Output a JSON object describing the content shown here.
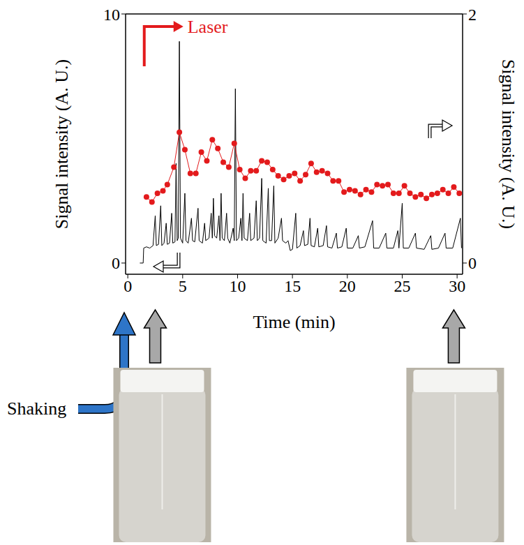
{
  "chart_data": {
    "type": "line",
    "x_label": "Time (min)",
    "y_label": "Signal intensity (A. U.)",
    "y2_label": "Signal intensity (A. U.)",
    "xlim": [
      -0.2,
      30.5
    ],
    "xticks": [
      0,
      5,
      10,
      15,
      20,
      25,
      30
    ],
    "ylim": [
      -0.45,
      10
    ],
    "yticks": [
      0,
      10
    ],
    "y2lim": [
      -0.09,
      2
    ],
    "y2ticks": [
      0,
      2
    ],
    "grid": false,
    "annotations": [
      "Laser",
      "Shaking"
    ],
    "series": [
      {
        "color": "#000000",
        "marker": "none",
        "line_style": "solid",
        "x": [
          1.1,
          1.4,
          1.45,
          1.7,
          2.0,
          2.3,
          2.5,
          2.6,
          2.8,
          3.0,
          3.1,
          3.3,
          3.5,
          3.6,
          3.8,
          4.0,
          4.1,
          4.3,
          4.4,
          4.5,
          4.6,
          4.7,
          4.8,
          5.0,
          5.2,
          5.3,
          5.5,
          5.8,
          5.9,
          6.1,
          6.4,
          6.5,
          6.8,
          7.0,
          7.1,
          7.4,
          7.6,
          7.7,
          7.8,
          7.9,
          8.1,
          8.3,
          8.4,
          8.5,
          8.6,
          8.8,
          9.0,
          9.1,
          9.3,
          9.6,
          9.7,
          9.8,
          9.9,
          10.1,
          10.3,
          10.4,
          10.5,
          10.6,
          10.9,
          11.1,
          11.2,
          11.5,
          11.7,
          11.8,
          12.0,
          12.2,
          12.3,
          12.6,
          12.8,
          12.9,
          13.1,
          13.3,
          13.4,
          13.7,
          14.0,
          14.1,
          14.4,
          14.6,
          14.8,
          15.0,
          15.3,
          15.4,
          15.7,
          16.0,
          16.1,
          16.4,
          16.6,
          16.7,
          17.0,
          17.3,
          17.4,
          17.8,
          18.1,
          18.2,
          18.6,
          19.0,
          19.1,
          19.5,
          19.9,
          20.0,
          20.5,
          21.0,
          21.1,
          21.6,
          22.3,
          22.4,
          22.9,
          23.5,
          23.6,
          24.2,
          24.6,
          24.7,
          25.0,
          25.1,
          25.6,
          26.2,
          26.3,
          27.0,
          27.6,
          27.7,
          28.3,
          28.9,
          29.0,
          29.6,
          30.3,
          30.4
        ],
        "values": [
          0,
          0,
          0.6,
          0.65,
          0.6,
          0.7,
          1.9,
          0.7,
          0.75,
          2.3,
          0.7,
          0.8,
          1.6,
          0.75,
          0.8,
          2.0,
          0.8,
          0.85,
          4.0,
          0.9,
          1.0,
          8.9,
          1.0,
          0.8,
          2.8,
          0.9,
          0.8,
          1.8,
          0.9,
          0.85,
          2.2,
          0.9,
          0.8,
          1.6,
          0.9,
          1.0,
          2.0,
          1.0,
          2.6,
          1.1,
          1.0,
          1.9,
          0.9,
          2.8,
          1.0,
          0.9,
          2.0,
          1.0,
          0.8,
          1.4,
          0.9,
          7.0,
          0.9,
          1.0,
          1.8,
          0.9,
          2.8,
          1.0,
          0.9,
          2.0,
          0.9,
          1.0,
          2.5,
          0.9,
          1.0,
          3.4,
          0.9,
          0.8,
          3.0,
          0.9,
          0.9,
          3.1,
          0.8,
          1.0,
          1.8,
          0.9,
          0.8,
          0.9,
          0.5,
          0.55,
          2.0,
          0.6,
          0.7,
          1.3,
          0.7,
          0.75,
          1.8,
          0.7,
          0.65,
          1.4,
          0.65,
          0.7,
          1.5,
          0.65,
          0.6,
          1.2,
          0.6,
          0.65,
          1.4,
          0.6,
          0.6,
          1.1,
          0.6,
          0.65,
          1.7,
          0.6,
          0.6,
          1.2,
          0.6,
          0.6,
          1.3,
          0.6,
          2.4,
          0.6,
          0.6,
          1.2,
          0.6,
          0.55,
          1.1,
          0.55,
          0.6,
          1.2,
          0.6,
          0.6,
          1.8,
          0.6
        ]
      },
      {
        "color": "#e31a1c",
        "marker": "circle",
        "line_style": "solid",
        "axis": "y2",
        "x": [
          1.7,
          2.2,
          2.7,
          3.2,
          3.6,
          4.2,
          4.7,
          5.2,
          5.7,
          6.2,
          6.7,
          7.2,
          7.7,
          8.2,
          8.7,
          9.2,
          9.7,
          10.2,
          10.7,
          11.2,
          11.7,
          12.2,
          12.7,
          13.2,
          13.7,
          14.2,
          14.7,
          15.2,
          15.7,
          16.2,
          16.7,
          17.2,
          17.7,
          18.2,
          18.7,
          19.2,
          19.7,
          20.2,
          20.7,
          21.2,
          21.7,
          22.2,
          22.7,
          23.2,
          23.7,
          24.2,
          24.7,
          25.2,
          25.7,
          26.2,
          26.7,
          27.2,
          27.7,
          28.2,
          28.7,
          29.2,
          29.7,
          30.2
        ],
        "values": [
          0.53,
          0.49,
          0.56,
          0.58,
          0.63,
          0.77,
          1.05,
          0.91,
          0.72,
          0.72,
          0.89,
          0.82,
          0.99,
          0.92,
          0.81,
          0.77,
          0.96,
          0.75,
          0.68,
          0.74,
          0.74,
          0.82,
          0.81,
          0.75,
          0.7,
          0.67,
          0.7,
          0.72,
          0.66,
          0.71,
          0.8,
          0.73,
          0.74,
          0.72,
          0.66,
          0.66,
          0.57,
          0.59,
          0.58,
          0.55,
          0.59,
          0.57,
          0.63,
          0.62,
          0.63,
          0.56,
          0.56,
          0.62,
          0.56,
          0.53,
          0.55,
          0.52,
          0.55,
          0.56,
          0.59,
          0.56,
          0.61,
          0.56
        ]
      }
    ]
  }
}
